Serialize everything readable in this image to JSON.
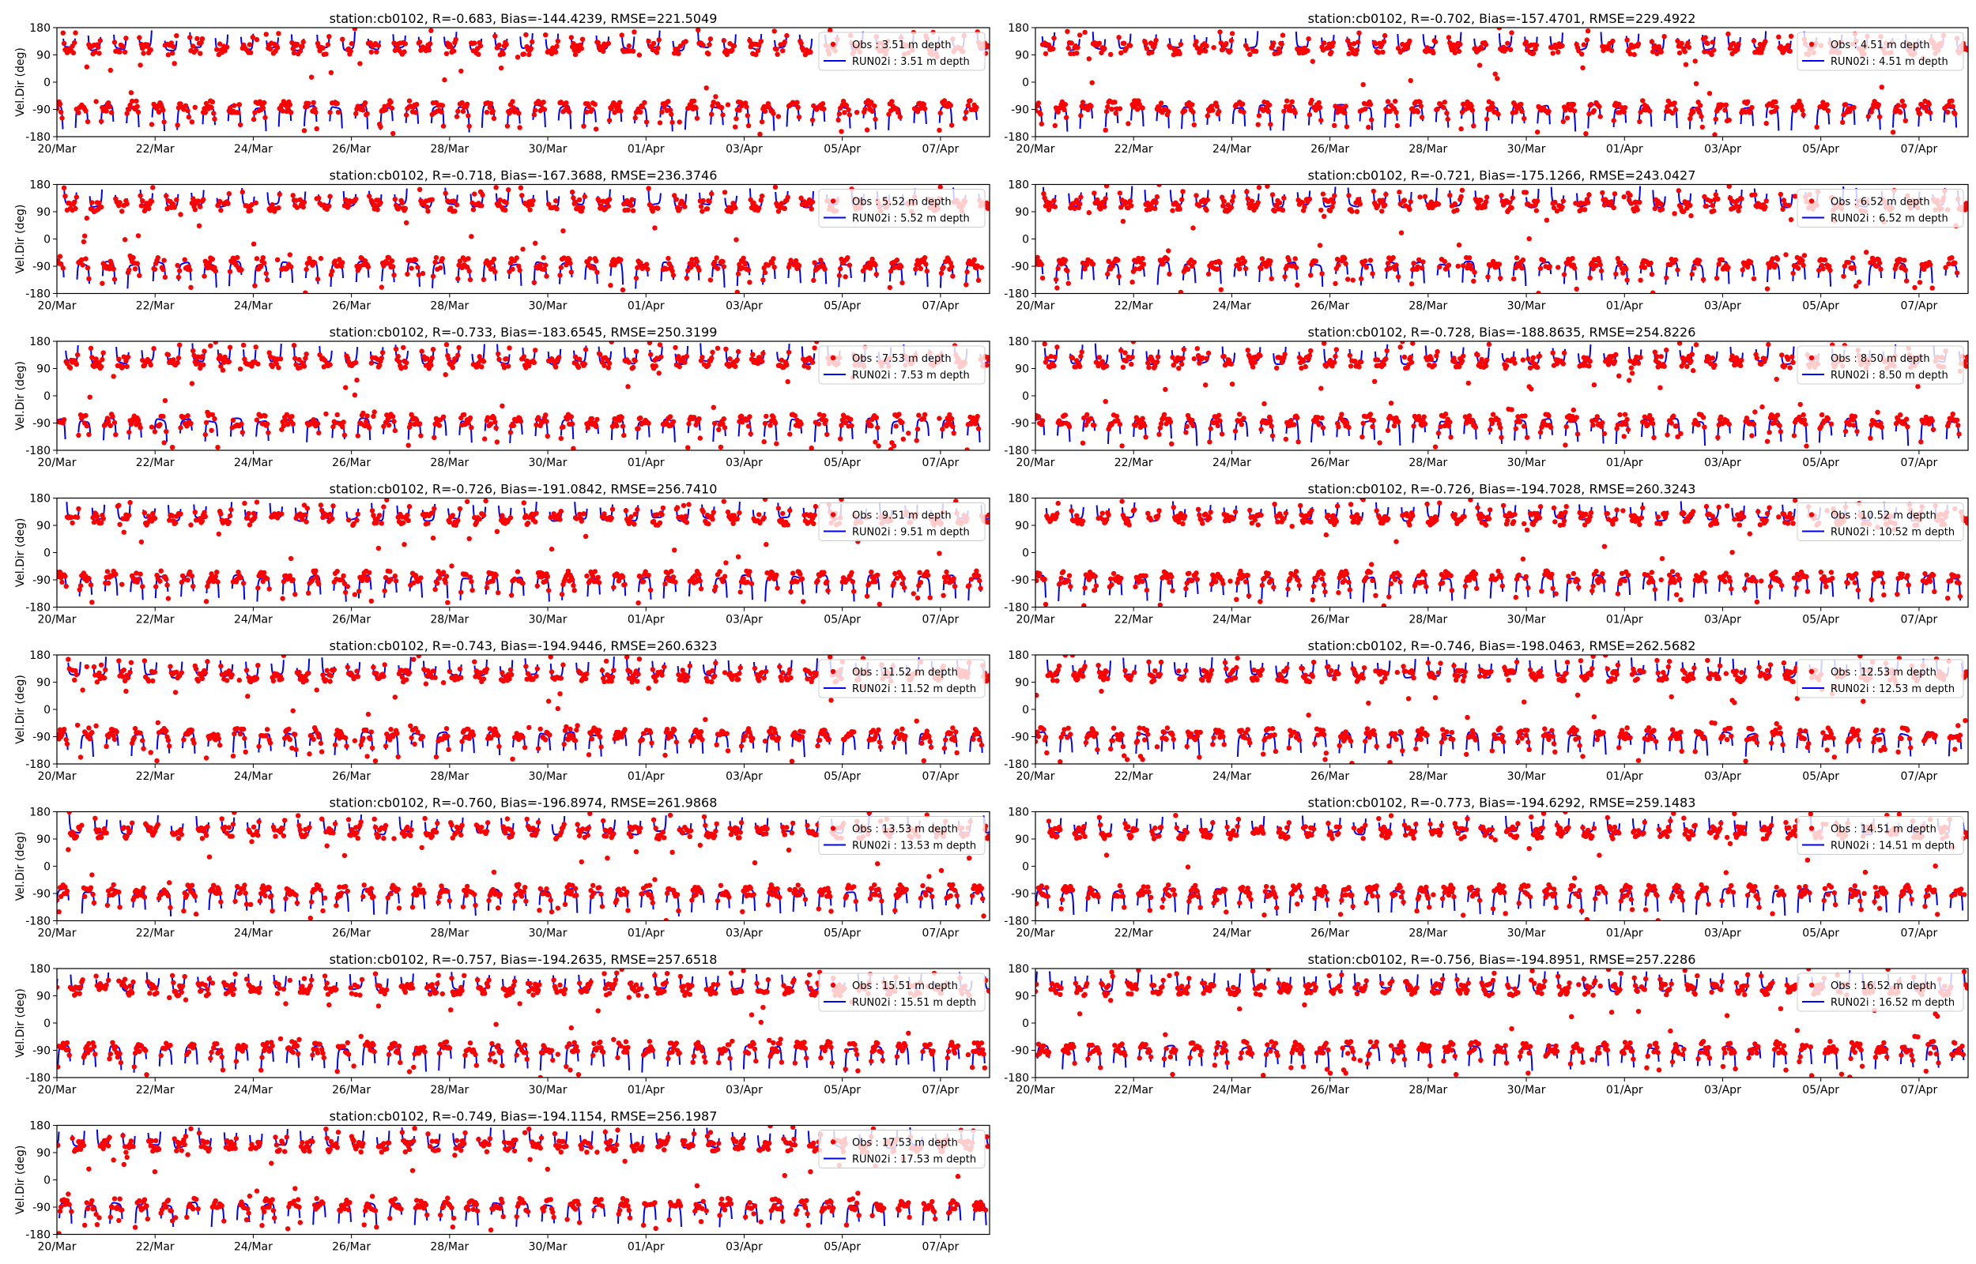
{
  "figure": {
    "station": "cb0102",
    "obs_color": "#ff0000",
    "model_color": "#0000ff",
    "ylabel": "Vel.Dir (deg)",
    "x_ticks": [
      "20/Mar",
      "22/Mar",
      "24/Mar",
      "26/Mar",
      "28/Mar",
      "30/Mar",
      "01/Apr",
      "03/Apr",
      "05/Apr",
      "07/Apr"
    ],
    "y_ticks": [
      "180",
      "90",
      "0",
      "-90",
      "-180"
    ]
  },
  "chart_data": [
    {
      "type": "scatter",
      "title": "station:cb0102, R=-0.683, Bias=-144.4239, RMSE=221.5049",
      "xlabel": "",
      "ylabel": "Vel.Dir (deg)",
      "xlim": [
        "20/Mar",
        "08/Apr"
      ],
      "ylim": [
        -180,
        180
      ],
      "legend_position": "top-right",
      "series": [
        {
          "name": "Obs : 3.51 m depth",
          "kind": "points"
        },
        {
          "name": "RUN02i : 3.51 m depth",
          "kind": "line"
        }
      ]
    },
    {
      "type": "scatter",
      "title": "station:cb0102, R=-0.702, Bias=-157.4701, RMSE=229.4922",
      "xlabel": "",
      "ylabel": "",
      "xlim": [
        "20/Mar",
        "08/Apr"
      ],
      "ylim": [
        -180,
        180
      ],
      "legend_position": "top-right",
      "series": [
        {
          "name": "Obs : 4.51 m depth",
          "kind": "points"
        },
        {
          "name": "RUN02i : 4.51 m depth",
          "kind": "line"
        }
      ]
    },
    {
      "type": "scatter",
      "title": "station:cb0102, R=-0.718, Bias=-167.3688, RMSE=236.3746",
      "xlabel": "",
      "ylabel": "Vel.Dir (deg)",
      "xlim": [
        "20/Mar",
        "08/Apr"
      ],
      "ylim": [
        -180,
        180
      ],
      "legend_position": "top-right",
      "series": [
        {
          "name": "Obs : 5.52 m depth",
          "kind": "points"
        },
        {
          "name": "RUN02i : 5.52 m depth",
          "kind": "line"
        }
      ]
    },
    {
      "type": "scatter",
      "title": "station:cb0102, R=-0.721, Bias=-175.1266, RMSE=243.0427",
      "xlabel": "",
      "ylabel": "",
      "xlim": [
        "20/Mar",
        "08/Apr"
      ],
      "ylim": [
        -180,
        180
      ],
      "legend_position": "top-right",
      "series": [
        {
          "name": "Obs : 6.52 m depth",
          "kind": "points"
        },
        {
          "name": "RUN02i : 6.52 m depth",
          "kind": "line"
        }
      ]
    },
    {
      "type": "scatter",
      "title": "station:cb0102, R=-0.733, Bias=-183.6545, RMSE=250.3199",
      "xlabel": "",
      "ylabel": "Vel.Dir (deg)",
      "xlim": [
        "20/Mar",
        "08/Apr"
      ],
      "ylim": [
        -180,
        180
      ],
      "legend_position": "top-right",
      "series": [
        {
          "name": "Obs : 7.53 m depth",
          "kind": "points"
        },
        {
          "name": "RUN02i : 7.53 m depth",
          "kind": "line"
        }
      ]
    },
    {
      "type": "scatter",
      "title": "station:cb0102, R=-0.728, Bias=-188.8635, RMSE=254.8226",
      "xlabel": "",
      "ylabel": "",
      "xlim": [
        "20/Mar",
        "08/Apr"
      ],
      "ylim": [
        -180,
        180
      ],
      "legend_position": "top-right",
      "series": [
        {
          "name": "Obs : 8.50 m depth",
          "kind": "points"
        },
        {
          "name": "RUN02i : 8.50 m depth",
          "kind": "line"
        }
      ]
    },
    {
      "type": "scatter",
      "title": "station:cb0102, R=-0.726, Bias=-191.0842, RMSE=256.7410",
      "xlabel": "",
      "ylabel": "Vel.Dir (deg)",
      "xlim": [
        "20/Mar",
        "08/Apr"
      ],
      "ylim": [
        -180,
        180
      ],
      "legend_position": "top-right",
      "series": [
        {
          "name": "Obs : 9.51 m depth",
          "kind": "points"
        },
        {
          "name": "RUN02i : 9.51 m depth",
          "kind": "line"
        }
      ]
    },
    {
      "type": "scatter",
      "title": "station:cb0102, R=-0.726, Bias=-194.7028, RMSE=260.3243",
      "xlabel": "",
      "ylabel": "",
      "xlim": [
        "20/Mar",
        "08/Apr"
      ],
      "ylim": [
        -180,
        180
      ],
      "legend_position": "top-right",
      "series": [
        {
          "name": "Obs : 10.52 m depth",
          "kind": "points"
        },
        {
          "name": "RUN02i : 10.52 m depth",
          "kind": "line"
        }
      ]
    },
    {
      "type": "scatter",
      "title": "station:cb0102, R=-0.743, Bias=-194.9446, RMSE=260.6323",
      "xlabel": "",
      "ylabel": "Vel.Dir (deg)",
      "xlim": [
        "20/Mar",
        "08/Apr"
      ],
      "ylim": [
        -180,
        180
      ],
      "legend_position": "top-right",
      "series": [
        {
          "name": "Obs : 11.52 m depth",
          "kind": "points"
        },
        {
          "name": "RUN02i : 11.52 m depth",
          "kind": "line"
        }
      ]
    },
    {
      "type": "scatter",
      "title": "station:cb0102, R=-0.746, Bias=-198.0463, RMSE=262.5682",
      "xlabel": "",
      "ylabel": "",
      "xlim": [
        "20/Mar",
        "08/Apr"
      ],
      "ylim": [
        -180,
        180
      ],
      "legend_position": "top-right",
      "series": [
        {
          "name": "Obs : 12.53 m depth",
          "kind": "points"
        },
        {
          "name": "RUN02i : 12.53 m depth",
          "kind": "line"
        }
      ]
    },
    {
      "type": "scatter",
      "title": "station:cb0102, R=-0.760, Bias=-196.8974, RMSE=261.9868",
      "xlabel": "",
      "ylabel": "Vel.Dir (deg)",
      "xlim": [
        "20/Mar",
        "08/Apr"
      ],
      "ylim": [
        -180,
        180
      ],
      "legend_position": "top-right",
      "series": [
        {
          "name": "Obs : 13.53 m depth",
          "kind": "points"
        },
        {
          "name": "RUN02i : 13.53 m depth",
          "kind": "line"
        }
      ]
    },
    {
      "type": "scatter",
      "title": "station:cb0102, R=-0.773, Bias=-194.6292, RMSE=259.1483",
      "xlabel": "",
      "ylabel": "",
      "xlim": [
        "20/Mar",
        "08/Apr"
      ],
      "ylim": [
        -180,
        180
      ],
      "legend_position": "top-right",
      "series": [
        {
          "name": "Obs : 14.51 m depth",
          "kind": "points"
        },
        {
          "name": "RUN02i : 14.51 m depth",
          "kind": "line"
        }
      ]
    },
    {
      "type": "scatter",
      "title": "station:cb0102, R=-0.757, Bias=-194.2635, RMSE=257.6518",
      "xlabel": "",
      "ylabel": "Vel.Dir (deg)",
      "xlim": [
        "20/Mar",
        "08/Apr"
      ],
      "ylim": [
        -180,
        180
      ],
      "legend_position": "top-right",
      "series": [
        {
          "name": "Obs : 15.51 m depth",
          "kind": "points"
        },
        {
          "name": "RUN02i : 15.51 m depth",
          "kind": "line"
        }
      ]
    },
    {
      "type": "scatter",
      "title": "station:cb0102, R=-0.756, Bias=-194.8951, RMSE=257.2286",
      "xlabel": "",
      "ylabel": "",
      "xlim": [
        "20/Mar",
        "08/Apr"
      ],
      "ylim": [
        -180,
        180
      ],
      "legend_position": "top-right",
      "series": [
        {
          "name": "Obs : 16.52 m depth",
          "kind": "points"
        },
        {
          "name": "RUN02i : 16.52 m depth",
          "kind": "line"
        }
      ]
    },
    {
      "type": "scatter",
      "title": "station:cb0102, R=-0.749, Bias=-194.1154, RMSE=256.1987",
      "xlabel": "",
      "ylabel": "Vel.Dir (deg)",
      "xlim": [
        "20/Mar",
        "08/Apr"
      ],
      "ylim": [
        -180,
        180
      ],
      "legend_position": "top-right",
      "series": [
        {
          "name": "Obs : 17.53 m depth",
          "kind": "points"
        },
        {
          "name": "RUN02i : 17.53 m depth",
          "kind": "line"
        }
      ]
    }
  ]
}
